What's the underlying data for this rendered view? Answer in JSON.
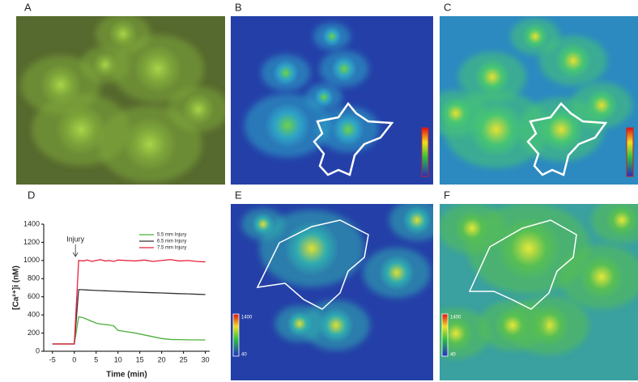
{
  "panels": {
    "labels": [
      "A",
      "B",
      "C",
      "D",
      "E",
      "F"
    ]
  },
  "colorbars": {
    "E": [
      "1400",
      "40"
    ],
    "F": [
      "1400",
      "40"
    ]
  },
  "chart_data": {
    "type": "line",
    "x_label": "Time (min)",
    "y_label": "[Ca²⁺]i (nM)",
    "annotation": "Injury",
    "x": [
      -5,
      -4,
      -3,
      -2,
      -1,
      0,
      1,
      2,
      3,
      4,
      5,
      6,
      7,
      8,
      9,
      10,
      12,
      14,
      16,
      18,
      20,
      22,
      24,
      26,
      28,
      30
    ],
    "series": [
      {
        "name": "5.5 mm Injury",
        "color": "#4caf3a",
        "values": [
          80,
          80,
          80,
          80,
          80,
          80,
          380,
          370,
          350,
          330,
          310,
          300,
          295,
          290,
          280,
          230,
          215,
          200,
          180,
          160,
          140,
          130,
          128,
          126,
          125,
          125
        ]
      },
      {
        "name": "6.5 mm Injury",
        "color": "#333333",
        "values": [
          80,
          80,
          80,
          80,
          80,
          80,
          680,
          678,
          675,
          672,
          670,
          668,
          666,
          664,
          662,
          660,
          656,
          652,
          648,
          645,
          642,
          638,
          635,
          632,
          628,
          625
        ]
      },
      {
        "name": "7.5 mm Injury",
        "color": "#e8203a",
        "values": [
          80,
          80,
          80,
          80,
          80,
          80,
          1000,
          995,
          1005,
          990,
          1000,
          1010,
          995,
          1000,
          990,
          1005,
          1000,
          995,
          1005,
          990,
          1000,
          1010,
          995,
          1000,
          990,
          985
        ]
      }
    ],
    "xlim": [
      -7,
      31
    ],
    "xticks": [
      -5,
      0,
      5,
      10,
      15,
      20,
      25,
      30
    ],
    "ylim": [
      0,
      1400
    ],
    "yticks": [
      0,
      200,
      400,
      600,
      800,
      1000,
      1200,
      1400
    ],
    "grid": false,
    "legend": "upper right"
  }
}
